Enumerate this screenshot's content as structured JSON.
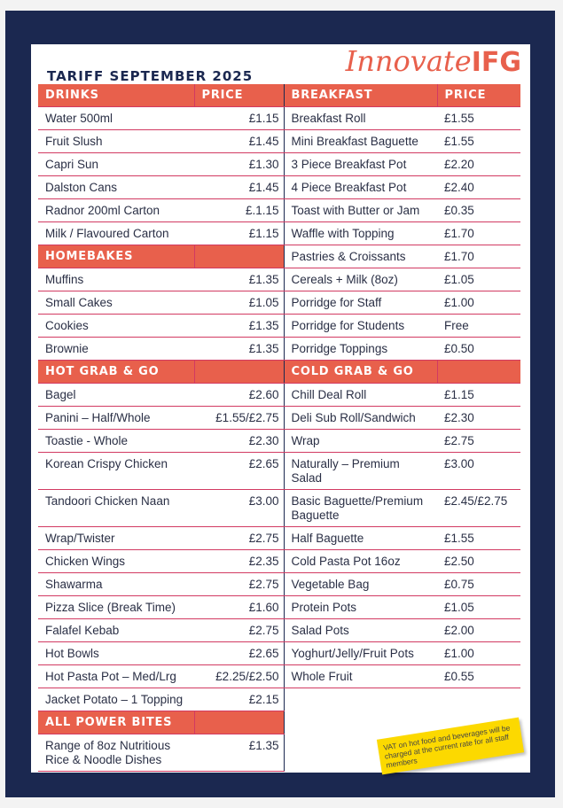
{
  "title": "TARIFF SEPTEMBER 2025",
  "logo": {
    "script": "Innovate",
    "bold": "IFG"
  },
  "colors": {
    "navy": "#1b2850",
    "coral": "#e8604c",
    "rule": "#d23a62",
    "note": "#fcd900"
  },
  "price_header": "PRICE",
  "left_sections": [
    {
      "title": "DRINKS",
      "show_price_header": true,
      "items": [
        {
          "name": "Water 500ml",
          "price": "£1.15"
        },
        {
          "name": "Fruit Slush",
          "price": "£1.45"
        },
        {
          "name": "Capri Sun",
          "price": "£1.30"
        },
        {
          "name": "Dalston Cans",
          "price": "£1.45"
        },
        {
          "name": "Radnor 200ml Carton",
          "price": "£.1.15"
        },
        {
          "name": "Milk / Flavoured Carton",
          "price": "£1.15"
        }
      ]
    },
    {
      "title": "HOMEBAKES",
      "items": [
        {
          "name": "Muffins",
          "price": "£1.35"
        },
        {
          "name": "Small Cakes",
          "price": "£1.05"
        },
        {
          "name": "Cookies",
          "price": "£1.35"
        },
        {
          "name": "Brownie",
          "price": "£1.35"
        }
      ]
    },
    {
      "title": "HOT GRAB & GO",
      "items": [
        {
          "name": "Bagel",
          "price": "£2.60"
        },
        {
          "name": "Panini – Half/Whole",
          "price": "£1.55/£2.75"
        },
        {
          "name": "Toastie - Whole",
          "price": "£2.30"
        },
        {
          "name": "Korean Crispy Chicken",
          "price": "£2.65"
        },
        {
          "name": "Tandoori Chicken Naan",
          "price": "£3.00"
        },
        {
          "name": "Wrap/Twister",
          "price": "£2.75"
        },
        {
          "name": "Chicken Wings",
          "price": "£2.35"
        },
        {
          "name": "Shawarma",
          "price": "£2.75"
        },
        {
          "name": "Pizza Slice (Break Time)",
          "price": "£1.60"
        },
        {
          "name": "Falafel Kebab",
          "price": "£2.75"
        },
        {
          "name": "Hot Bowls",
          "price": "£2.65"
        },
        {
          "name": "Hot Pasta Pot – Med/Lrg",
          "price": "£2.25/£2.50"
        },
        {
          "name": "Jacket Potato – 1 Topping",
          "price": "£2.15"
        }
      ]
    },
    {
      "title": "ALL POWER BITES",
      "items": [
        {
          "name": "Range of 8oz Nutritious Rice & Noodle Dishes",
          "price": "£1.35"
        }
      ]
    }
  ],
  "right_sections": [
    {
      "title": "BREAKFAST",
      "show_price_header": true,
      "items": [
        {
          "name": "Breakfast Roll",
          "price": "£1.55"
        },
        {
          "name": "Mini Breakfast Baguette",
          "price": "£1.55"
        },
        {
          "name": "3 Piece Breakfast Pot",
          "price": "£2.20"
        },
        {
          "name": "4 Piece Breakfast Pot",
          "price": "£2.40"
        },
        {
          "name": "Toast with Butter or Jam",
          "price": "£0.35"
        },
        {
          "name": "Waffle with Topping",
          "price": "£1.70"
        },
        {
          "name": "Pastries & Croissants",
          "price": "£1.70"
        },
        {
          "name": "Cereals + Milk (8oz)",
          "price": "£1.05"
        },
        {
          "name": "Porridge for Staff",
          "price": "£1.00"
        },
        {
          "name": "Porridge for Students",
          "price": "Free"
        },
        {
          "name": "Porridge Toppings",
          "price": "£0.50"
        }
      ]
    },
    {
      "title": "COLD GRAB & GO",
      "items": [
        {
          "name": "Chill Deal Roll",
          "price": "£1.15"
        },
        {
          "name": "Deli Sub Roll/Sandwich",
          "price": "£2.30"
        },
        {
          "name": "Wrap",
          "price": "£2.75"
        },
        {
          "name": "Naturally – Premium Salad",
          "price": "£3.00"
        },
        {
          "name": "Basic Baguette/Premium Baguette",
          "price": "£2.45/£2.75"
        },
        {
          "name": "Half Baguette",
          "price": "£1.55"
        },
        {
          "name": "Cold Pasta Pot 16oz",
          "price": "£2.50"
        },
        {
          "name": "Vegetable Bag",
          "price": "£0.75"
        },
        {
          "name": "Protein Pots",
          "price": "£1.05"
        },
        {
          "name": "Salad Pots",
          "price": "£2.00"
        },
        {
          "name": "Yoghurt/Jelly/Fruit Pots",
          "price": "£1.00"
        },
        {
          "name": "Whole Fruit",
          "price": "£0.55"
        }
      ]
    }
  ],
  "note": "VAT on hot food and beverages will be charged at the current rate for all staff members"
}
